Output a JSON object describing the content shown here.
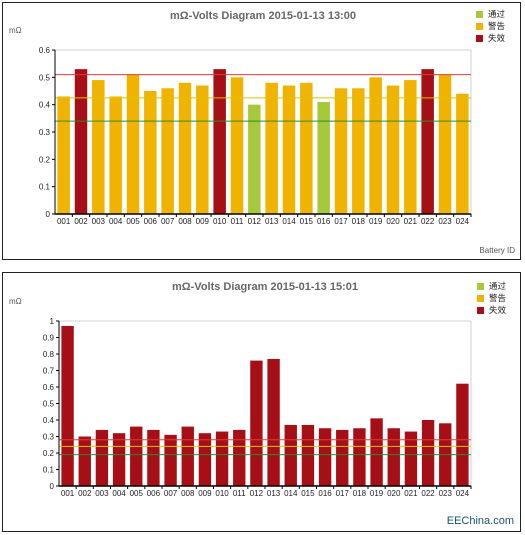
{
  "colors": {
    "pass": "#a6c83b",
    "warn": "#f0b400",
    "fail": "#a50f15",
    "line_red": "#e53935",
    "line_yellow": "#d8c400",
    "line_green": "#2e8b2e"
  },
  "watermark": "EEChina.com",
  "chart_data": [
    {
      "type": "bar",
      "title": "mΩ-Volts Diagram 2015-01-13 13:00",
      "ylabel": "mΩ",
      "xlabel": "Battery ID",
      "ylim": [
        0,
        0.6
      ],
      "yticks": [
        "0",
        "0.1",
        "0.2",
        "0.3",
        "0.4",
        "0.5",
        "0.6"
      ],
      "grid": false,
      "legend_position": "top-right",
      "legend": [
        {
          "label": "通过",
          "status": "pass"
        },
        {
          "label": "警告",
          "status": "warn"
        },
        {
          "label": "失效",
          "status": "fail"
        }
      ],
      "reference_lines": [
        {
          "value": 0.51,
          "color": "line_red"
        },
        {
          "value": 0.425,
          "color": "line_yellow"
        },
        {
          "value": 0.34,
          "color": "line_green"
        }
      ],
      "categories": [
        "001",
        "002",
        "003",
        "004",
        "005",
        "006",
        "007",
        "008",
        "009",
        "010",
        "011",
        "012",
        "013",
        "014",
        "015",
        "016",
        "017",
        "018",
        "019",
        "020",
        "021",
        "022",
        "023",
        "024"
      ],
      "values": [
        0.43,
        0.53,
        0.49,
        0.43,
        0.51,
        0.45,
        0.46,
        0.48,
        0.47,
        0.53,
        0.5,
        0.4,
        0.48,
        0.47,
        0.48,
        0.41,
        0.46,
        0.46,
        0.5,
        0.47,
        0.49,
        0.53,
        0.51,
        0.44
      ],
      "status": [
        "warn",
        "fail",
        "warn",
        "warn",
        "warn",
        "warn",
        "warn",
        "warn",
        "warn",
        "fail",
        "warn",
        "pass",
        "warn",
        "warn",
        "warn",
        "pass",
        "warn",
        "warn",
        "warn",
        "warn",
        "warn",
        "fail",
        "warn",
        "warn"
      ]
    },
    {
      "type": "bar",
      "title": "mΩ-Volts Diagram 2015-01-13 15:01",
      "ylabel": "mΩ",
      "xlabel": "",
      "ylim": [
        0,
        1
      ],
      "yticks": [
        "0",
        "0.1",
        "0.2",
        "0.3",
        "0.4",
        "0.5",
        "0.6",
        "0.7",
        "0.8",
        "0.9",
        "1"
      ],
      "grid": false,
      "legend_position": "top-right",
      "legend": [
        {
          "label": "通过",
          "status": "pass"
        },
        {
          "label": "警告",
          "status": "warn"
        },
        {
          "label": "失效",
          "status": "fail"
        }
      ],
      "reference_lines": [
        {
          "value": 0.28,
          "color": "line_red"
        },
        {
          "value": 0.24,
          "color": "line_yellow"
        },
        {
          "value": 0.19,
          "color": "line_green"
        }
      ],
      "categories": [
        "001",
        "002",
        "003",
        "004",
        "005",
        "006",
        "007",
        "008",
        "009",
        "010",
        "011",
        "012",
        "013",
        "014",
        "015",
        "016",
        "017",
        "018",
        "019",
        "020",
        "021",
        "022",
        "023",
        "024"
      ],
      "values": [
        0.97,
        0.3,
        0.34,
        0.32,
        0.36,
        0.34,
        0.31,
        0.36,
        0.32,
        0.33,
        0.34,
        0.76,
        0.77,
        0.37,
        0.37,
        0.35,
        0.34,
        0.35,
        0.41,
        0.35,
        0.33,
        0.4,
        0.38,
        0.62
      ],
      "status": [
        "fail",
        "fail",
        "fail",
        "fail",
        "fail",
        "fail",
        "fail",
        "fail",
        "fail",
        "fail",
        "fail",
        "fail",
        "fail",
        "fail",
        "fail",
        "fail",
        "fail",
        "fail",
        "fail",
        "fail",
        "fail",
        "fail",
        "fail",
        "fail"
      ]
    }
  ]
}
